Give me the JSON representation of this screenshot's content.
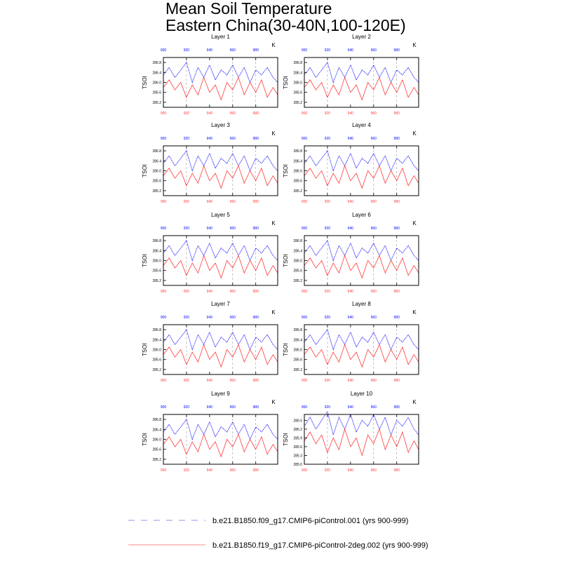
{
  "title": {
    "line1": "Mean Soil Temperature",
    "line2": "Eastern China(30-40N,100-120E)"
  },
  "colors": {
    "series_a": "#0000ff",
    "series_b": "#ff3b3b",
    "legend_a": "#a9a9ee",
    "legend_b": "#f5a0a0",
    "axis": "#000000",
    "ref_line": "#999999"
  },
  "chart_data": {
    "type": "line",
    "units_label": "K",
    "ylabel": "TSOI",
    "x_range": [
      900,
      999
    ],
    "x_ticks": [
      900,
      920,
      940,
      960,
      980
    ],
    "reference_years": [
      920,
      960,
      980
    ],
    "legend": {
      "position": "bottom",
      "entries": [
        {
          "label": "b.e21.B1850.f09_g17.CMIP6-piControl.001 (yrs 900-999)",
          "style": "dashed",
          "color": "#a9a9ee"
        },
        {
          "label": "b.e21.B1850.f19_g17.CMIP6-piControl-2deg.002 (yrs 900-999)",
          "style": "solid",
          "color": "#f5a0a0"
        }
      ]
    },
    "panels": [
      {
        "name": "Layer 1",
        "ylim": [
          285.0,
          287.0
        ],
        "y_ticks": [
          "285.2",
          "285.6",
          "286.0",
          "286.4",
          "286.8"
        ],
        "y_tick_values": [
          285.2,
          285.6,
          286.0,
          286.4,
          286.8
        ]
      },
      {
        "name": "Layer 2",
        "ylim": [
          285.0,
          287.0
        ],
        "y_ticks": [
          "285.2",
          "285.6",
          "286.0",
          "286.4",
          "286.8"
        ],
        "y_tick_values": [
          285.2,
          285.6,
          286.0,
          286.4,
          286.8
        ]
      },
      {
        "name": "Layer 3",
        "ylim": [
          285.0,
          287.0
        ],
        "y_ticks": [
          "285.2",
          "285.6",
          "286.0",
          "286.4",
          "286.8"
        ],
        "y_tick_values": [
          285.2,
          285.6,
          286.0,
          286.4,
          286.8
        ]
      },
      {
        "name": "Layer 4",
        "ylim": [
          285.0,
          287.0
        ],
        "y_ticks": [
          "285.2",
          "285.6",
          "286.0",
          "286.4",
          "286.8"
        ],
        "y_tick_values": [
          285.2,
          285.6,
          286.0,
          286.4,
          286.8
        ]
      },
      {
        "name": "Layer 5",
        "ylim": [
          285.0,
          287.0
        ],
        "y_ticks": [
          "285.2",
          "285.6",
          "286.0",
          "286.4",
          "286.8"
        ],
        "y_tick_values": [
          285.2,
          285.6,
          286.0,
          286.4,
          286.8
        ]
      },
      {
        "name": "Layer 6",
        "ylim": [
          285.0,
          287.0
        ],
        "y_ticks": [
          "285.2",
          "285.6",
          "286.0",
          "286.4",
          "286.8"
        ],
        "y_tick_values": [
          285.2,
          285.6,
          286.0,
          286.4,
          286.8
        ]
      },
      {
        "name": "Layer 7",
        "ylim": [
          285.0,
          287.0
        ],
        "y_ticks": [
          "285.2",
          "285.6",
          "286.0",
          "286.4",
          "286.8"
        ],
        "y_tick_values": [
          285.2,
          285.6,
          286.0,
          286.4,
          286.8
        ]
      },
      {
        "name": "Layer 8",
        "ylim": [
          285.0,
          287.0
        ],
        "y_ticks": [
          "285.2",
          "285.6",
          "286.0",
          "286.4",
          "286.8"
        ],
        "y_tick_values": [
          285.2,
          285.6,
          286.0,
          286.4,
          286.8
        ]
      },
      {
        "name": "Layer 9",
        "ylim": [
          285.0,
          287.0
        ],
        "y_ticks": [
          "285.2",
          "285.6",
          "286.0",
          "286.4",
          "286.8"
        ],
        "y_tick_values": [
          285.2,
          285.6,
          286.0,
          286.4,
          286.8
        ]
      },
      {
        "name": "Layer 10",
        "ylim": [
          285.0,
          286.7
        ],
        "y_ticks": [
          "285.0",
          "285.3",
          "285.6",
          "285.9",
          "286.2",
          "286.5"
        ],
        "y_tick_values": [
          285.0,
          285.3,
          285.6,
          285.9,
          286.2,
          286.5
        ]
      }
    ],
    "series": [
      {
        "name": "b.e21.B1850.f09_g17.CMIP6-piControl.001",
        "color": "#0000ff",
        "style": "dotted",
        "x": [
          900,
          905,
          910,
          915,
          920,
          925,
          930,
          935,
          940,
          945,
          950,
          955,
          960,
          965,
          970,
          975,
          980,
          985,
          990,
          995,
          999
        ],
        "values": [
          286.3,
          286.6,
          286.2,
          286.5,
          286.8,
          286.0,
          286.6,
          286.2,
          286.7,
          286.1,
          286.5,
          286.3,
          286.7,
          286.2,
          286.6,
          286.0,
          286.5,
          286.3,
          286.6,
          286.2,
          286.0
        ]
      },
      {
        "name": "b.e21.B1850.f19_g17.CMIP6-piControl-2deg.002",
        "color": "#ff3b3b",
        "style": "solid",
        "x": [
          900,
          905,
          910,
          915,
          920,
          925,
          930,
          935,
          940,
          945,
          950,
          955,
          960,
          965,
          970,
          975,
          980,
          985,
          990,
          995,
          999
        ],
        "values": [
          285.8,
          286.1,
          285.7,
          286.0,
          285.4,
          285.9,
          285.5,
          286.2,
          285.6,
          285.9,
          285.3,
          286.0,
          285.7,
          286.2,
          285.5,
          286.0,
          285.6,
          286.1,
          285.4,
          285.8,
          285.5
        ]
      }
    ]
  }
}
